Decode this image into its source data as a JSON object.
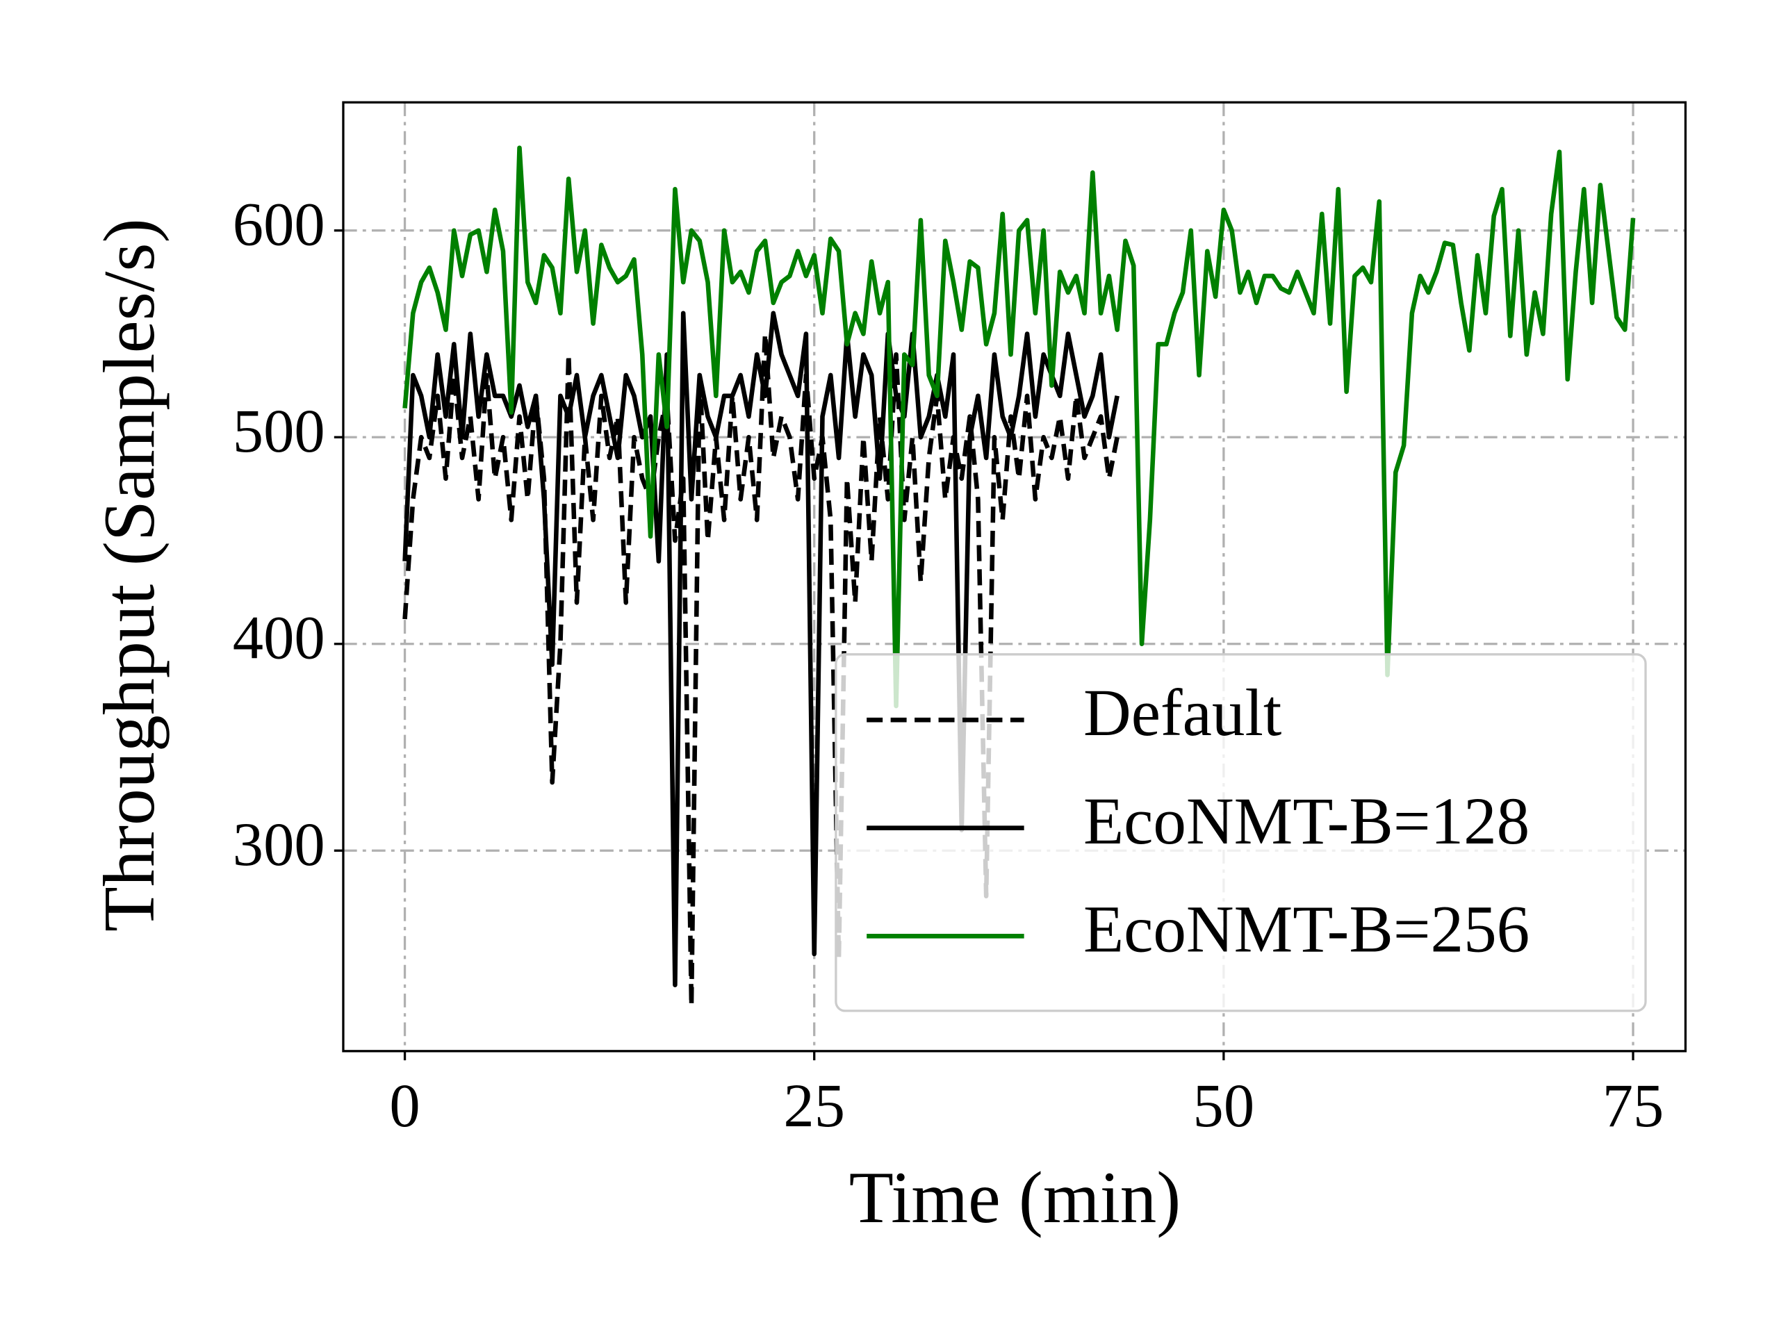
{
  "chart_data": {
    "type": "line",
    "xlabel": "Time (min)",
    "ylabel": "Throughput (Samples/s)",
    "xlim": [
      -3.76,
      78.2
    ],
    "ylim": [
      203,
      662
    ],
    "xticks": [
      0,
      25,
      50,
      75
    ],
    "yticks": [
      300,
      400,
      500,
      600
    ],
    "grid": true,
    "legend": "lower right",
    "x": [
      0,
      0.5,
      1,
      1.5,
      2,
      2.5,
      3,
      3.5,
      4,
      4.5,
      5,
      5.5,
      6,
      6.5,
      7,
      7.5,
      8,
      8.5,
      9,
      9.5,
      10,
      10.5,
      11,
      11.5,
      12,
      12.5,
      13,
      13.5,
      14,
      14.5,
      15,
      15.5,
      16,
      16.5,
      17,
      17.5,
      18,
      18.5,
      19,
      19.5,
      20,
      20.5,
      21,
      21.5,
      22,
      22.5,
      23,
      23.5,
      24,
      24.5,
      25,
      25.5,
      26,
      26.5,
      27,
      27.5,
      28,
      28.5,
      29,
      29.5,
      30,
      30.5,
      31,
      31.5,
      32,
      32.5,
      33,
      33.5,
      34,
      34.5,
      35,
      35.5,
      36,
      36.5,
      37,
      37.5,
      38,
      38.5,
      39,
      39.5,
      40,
      40.5,
      41,
      41.5,
      42,
      42.5,
      43,
      43.5,
      44,
      44.5,
      45,
      45.5,
      46,
      46.5,
      47,
      47.5,
      48,
      48.5,
      49,
      49.5,
      50,
      50.5,
      51,
      51.5,
      52,
      52.5,
      53,
      53.5,
      54,
      54.5,
      55,
      55.5,
      56,
      56.5,
      57,
      57.5,
      58,
      58.5,
      59,
      59.5,
      60,
      60.5,
      61,
      61.5,
      62,
      62.5,
      63,
      63.5,
      64,
      64.5,
      65,
      65.5,
      66,
      66.5,
      67,
      67.5,
      68,
      68.5,
      69,
      69.5,
      70,
      70.5,
      71,
      71.5,
      72,
      72.5,
      73,
      73.5,
      74,
      74.5,
      75
    ],
    "series": [
      {
        "name": "Default",
        "color": "#000000",
        "linestyle": "dashed",
        "values": [
          412,
          470,
          500,
          490,
          520,
          480,
          530,
          490,
          510,
          470,
          530,
          480,
          500,
          460,
          510,
          470,
          520,
          480,
          333,
          400,
          540,
          420,
          500,
          460,
          520,
          490,
          510,
          420,
          500,
          480,
          470,
          500,
          520,
          450,
          480,
          225,
          530,
          450,
          500,
          460,
          520,
          470,
          500,
          460,
          550,
          490,
          510,
          500,
          470,
          530,
          480,
          500,
          460,
          248,
          480,
          420,
          500,
          440,
          510,
          470,
          540,
          460,
          500,
          430,
          490,
          520,
          470,
          500,
          480,
          510,
          470,
          278,
          500,
          460,
          510,
          480,
          520,
          470,
          500,
          490,
          510,
          480,
          520,
          490,
          500,
          510,
          480,
          500,
          null,
          null,
          null,
          null,
          null,
          null,
          null,
          null,
          null,
          null,
          null,
          null,
          null,
          null,
          null,
          null,
          null,
          null,
          null,
          null,
          null,
          null,
          null,
          null,
          null,
          null,
          null,
          null,
          null,
          null,
          null,
          null,
          null,
          null,
          null,
          null,
          null,
          null,
          null,
          null,
          null,
          null,
          null,
          null,
          null,
          null,
          null,
          null,
          null,
          null,
          null,
          null,
          null,
          null,
          null,
          null,
          null,
          null,
          null,
          null,
          null,
          null,
          null
        ]
      },
      {
        "name": "EcoNMT-B=128",
        "color": "#000000",
        "linestyle": "solid",
        "values": [
          440,
          530,
          520,
          500,
          540,
          510,
          545,
          500,
          550,
          510,
          540,
          520,
          520,
          510,
          525,
          505,
          520,
          470,
          390,
          520,
          510,
          530,
          500,
          520,
          530,
          510,
          490,
          530,
          520,
          500,
          510,
          440,
          540,
          235,
          560,
          470,
          530,
          510,
          500,
          520,
          520,
          530,
          510,
          540,
          520,
          560,
          540,
          530,
          520,
          550,
          250,
          510,
          530,
          490,
          550,
          510,
          540,
          530,
          480,
          550,
          520,
          510,
          550,
          500,
          510,
          530,
          510,
          540,
          310,
          500,
          520,
          490,
          540,
          510,
          500,
          520,
          550,
          510,
          540,
          530,
          520,
          550,
          530,
          510,
          520,
          540,
          500,
          520,
          null,
          null,
          null,
          null,
          null,
          null,
          null,
          null,
          null,
          null,
          null,
          null,
          null,
          null,
          null,
          null,
          null,
          null,
          null,
          null,
          null,
          null,
          null,
          null,
          null,
          null,
          null,
          null,
          null,
          null,
          null,
          null,
          null,
          null,
          null,
          null,
          null,
          null,
          null,
          null,
          null,
          null,
          null,
          null,
          null,
          null,
          null,
          null,
          null,
          null,
          null,
          null,
          null,
          null,
          null,
          null,
          null,
          null,
          null,
          null,
          null,
          null,
          null
        ]
      },
      {
        "name": "EcoNMT-B=256",
        "color": "#008000",
        "linestyle": "solid",
        "values": [
          514,
          560,
          575,
          582,
          570,
          552,
          600,
          578,
          598,
          600,
          580,
          610,
          590,
          512,
          640,
          575,
          565,
          588,
          582,
          560,
          625,
          580,
          600,
          555,
          593,
          582,
          575,
          578,
          586,
          540,
          452,
          540,
          505,
          620,
          575,
          600,
          595,
          575,
          520,
          600,
          575,
          580,
          570,
          590,
          595,
          565,
          575,
          578,
          590,
          578,
          588,
          560,
          596,
          590,
          545,
          560,
          550,
          585,
          560,
          575,
          370,
          540,
          535,
          605,
          530,
          520,
          595,
          575,
          552,
          585,
          582,
          545,
          560,
          608,
          540,
          600,
          605,
          560,
          600,
          525,
          580,
          570,
          578,
          560,
          628,
          560,
          578,
          552,
          595,
          583,
          400,
          460,
          545,
          545,
          560,
          570,
          600,
          530,
          590,
          568,
          610,
          600,
          570,
          580,
          565,
          578,
          578,
          572,
          570,
          580,
          570,
          560,
          608,
          555,
          620,
          522,
          578,
          582,
          575,
          614,
          385,
          483,
          496,
          560,
          578,
          570,
          580,
          594,
          593,
          565,
          542,
          588,
          560,
          607,
          620,
          549,
          600,
          540,
          570,
          550,
          608,
          638,
          528,
          580,
          620,
          565,
          622,
          590,
          558,
          552,
          606
        ]
      }
    ]
  }
}
